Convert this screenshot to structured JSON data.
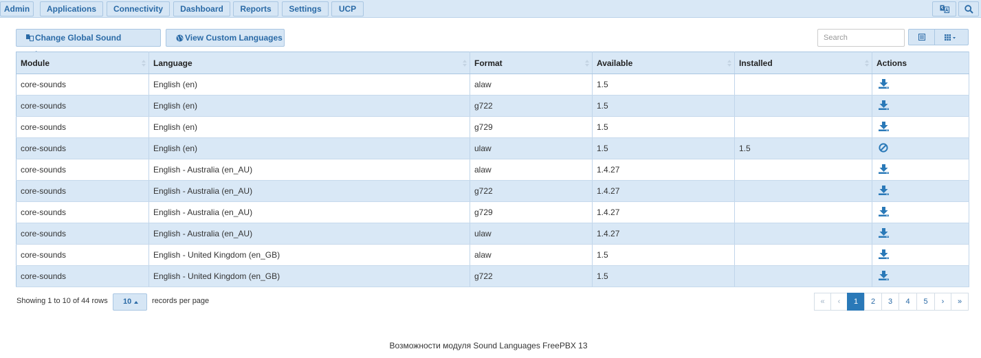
{
  "nav": {
    "items": [
      "Admin",
      "Applications",
      "Connectivity",
      "Dashboard",
      "Reports",
      "Settings",
      "UCP"
    ],
    "icons": [
      "language-icon",
      "search-icon"
    ]
  },
  "toolbar": {
    "change_global_label": "Change Global Sound Language",
    "view_custom_label": "View Custom Languages",
    "search_placeholder": "Search"
  },
  "table": {
    "columns": [
      "Module",
      "Language",
      "Format",
      "Available",
      "Installed",
      "Actions"
    ],
    "rows": [
      {
        "module": "core-sounds",
        "language": "English (en)",
        "format": "alaw",
        "available": "1.5",
        "installed": "",
        "action": "download-icon"
      },
      {
        "module": "core-sounds",
        "language": "English (en)",
        "format": "g722",
        "available": "1.5",
        "installed": "",
        "action": "download-icon"
      },
      {
        "module": "core-sounds",
        "language": "English (en)",
        "format": "g729",
        "available": "1.5",
        "installed": "",
        "action": "download-icon"
      },
      {
        "module": "core-sounds",
        "language": "English (en)",
        "format": "ulaw",
        "available": "1.5",
        "installed": "1.5",
        "action": "ban-icon"
      },
      {
        "module": "core-sounds",
        "language": "English - Australia (en_AU)",
        "format": "alaw",
        "available": "1.4.27",
        "installed": "",
        "action": "download-icon"
      },
      {
        "module": "core-sounds",
        "language": "English - Australia (en_AU)",
        "format": "g722",
        "available": "1.4.27",
        "installed": "",
        "action": "download-icon"
      },
      {
        "module": "core-sounds",
        "language": "English - Australia (en_AU)",
        "format": "g729",
        "available": "1.4.27",
        "installed": "",
        "action": "download-icon"
      },
      {
        "module": "core-sounds",
        "language": "English - Australia (en_AU)",
        "format": "ulaw",
        "available": "1.4.27",
        "installed": "",
        "action": "download-icon"
      },
      {
        "module": "core-sounds",
        "language": "English - United Kingdom (en_GB)",
        "format": "alaw",
        "available": "1.5",
        "installed": "",
        "action": "download-icon"
      },
      {
        "module": "core-sounds",
        "language": "English - United Kingdom (en_GB)",
        "format": "g722",
        "available": "1.5",
        "installed": "",
        "action": "download-icon"
      }
    ]
  },
  "footer": {
    "showing": "Showing 1 to 10 of 44 rows",
    "per_page": "10",
    "records_label": "records per page"
  },
  "pagination": {
    "first": "«",
    "prev": "‹",
    "pages": [
      "1",
      "2",
      "3",
      "4",
      "5"
    ],
    "active": "1",
    "next": "›",
    "last": "»"
  },
  "caption": "Возможности модуля Sound Languages FreePBX 13",
  "colors": {
    "accent": "#2a6aa6",
    "header_bg": "#d9e8f6",
    "active_page": "#2a79b8"
  }
}
